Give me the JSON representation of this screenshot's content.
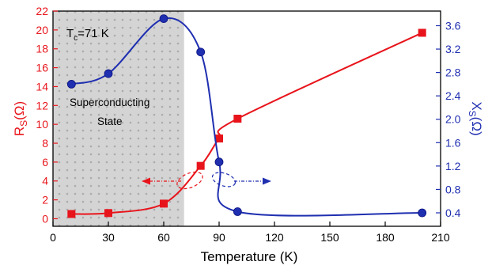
{
  "chart_data": {
    "type": "line",
    "xlabel": "Temperature (K)",
    "x_ticks": [
      0,
      30,
      60,
      90,
      120,
      150,
      180,
      210
    ],
    "xlim": [
      0,
      210
    ],
    "y_left": {
      "label_main": "R",
      "label_sub": "S",
      "label_unit": "(Ω)",
      "ticks": [
        0,
        2,
        4,
        6,
        8,
        10,
        12,
        14,
        16,
        18,
        20,
        22
      ],
      "ylim": [
        -0.8,
        22
      ],
      "color": "#e8141b"
    },
    "y_right": {
      "label_main": "X",
      "label_sub": "S",
      "label_unit": "(Ω)",
      "ticks": [
        "0.4",
        "0.8",
        "1.2",
        "1.6",
        "2.0",
        "2.4",
        "2.8",
        "3.2",
        "3.6"
      ],
      "ylim": [
        0.17,
        3.85
      ],
      "color": "#1f2fb0"
    },
    "series": [
      {
        "axis": "left",
        "marker": "square",
        "color": "#e8141b",
        "x": [
          10,
          30,
          60,
          80,
          90,
          100,
          200
        ],
        "y": [
          0.5,
          0.6,
          1.6,
          5.6,
          8.5,
          10.6,
          19.7
        ]
      },
      {
        "axis": "right",
        "marker": "circle",
        "color": "#1f2fb0",
        "x": [
          10,
          30,
          60,
          80,
          90,
          100,
          200
        ],
        "y": [
          2.6,
          2.78,
          3.72,
          3.15,
          1.27,
          0.42,
          0.4
        ]
      }
    ],
    "shaded_region": {
      "x_from": 0,
      "x_to": 71,
      "fill": "#d4d4d4"
    },
    "annotations": {
      "tc_main": "T",
      "tc_sub": "c",
      "tc_value": "=71 K",
      "state_line1": "Superconducting",
      "state_line2": "State"
    }
  }
}
